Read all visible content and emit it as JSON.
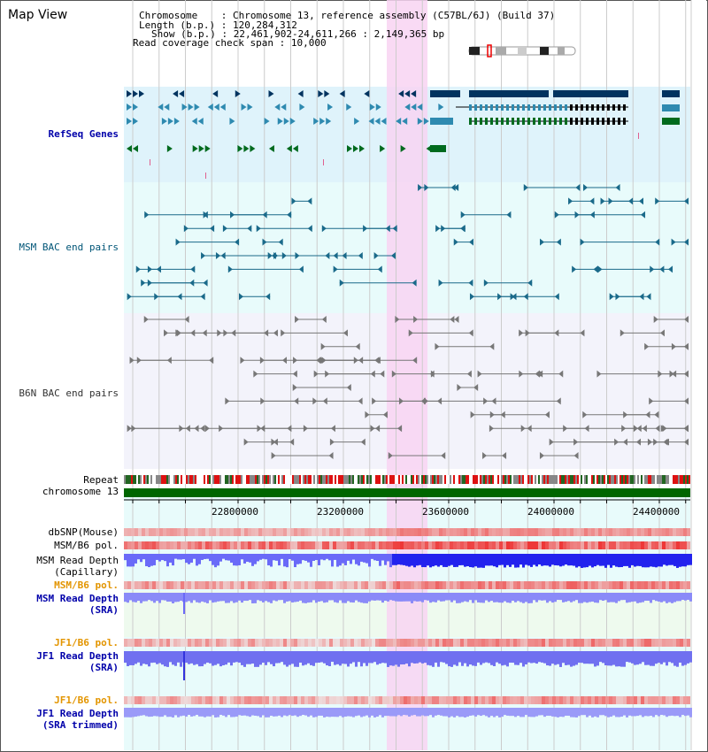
{
  "title": "Map View",
  "info": {
    "chromosome_label": "Chromosome",
    "chromosome_value": "Chromosome 13, reference assembly (C57BL/6J) (Build 37)",
    "length_label": "Length (b.p.)",
    "length_value": "120,284,312",
    "show_label": "Show (b.p.)",
    "show_value": "22,461,902-24,611,266 : 2,149,365 bp",
    "coverage_label": "Read coverage check span",
    "coverage_value": "10,000"
  },
  "tracks": {
    "refseq": "RefSeq Genes",
    "msm_bac": "MSM BAC end pairs",
    "b6n_bac": "B6N BAC end pairs",
    "repeat": "Repeat",
    "chromosome": "chromosome 13",
    "dbsnp": "dbSNP(Mouse)",
    "msm_b6_pol_1": "MSM/B6 pol.",
    "msm_read_depth_cap_1": "MSM Read Depth",
    "msm_read_depth_cap_2": "(Capillary)",
    "msm_b6_pol_2": "MSM/B6 pol.",
    "msm_read_depth_sra_1": "MSM Read Depth",
    "msm_read_depth_sra_2": "(SRA)",
    "jf1_b6_pol_1": "JF1/B6 pol.",
    "jf1_read_depth_sra_1": "JF1 Read Depth",
    "jf1_read_depth_sra_2": "(SRA)",
    "jf1_b6_pol_2": "JF1/B6 pol.",
    "jf1_read_depth_trim_1": "JF1 Read Depth",
    "jf1_read_depth_trim_2": "(SRA trimmed)"
  },
  "axis_ticks": [
    "22800000",
    "23200000",
    "23600000",
    "24000000",
    "24400000"
  ],
  "colors": {
    "refseq_bg": "#dff3fb",
    "msm_bg": "#e8fbfb",
    "b6n_bg": "#f3f3fb",
    "highlight": "#f8d4f2",
    "chromosome_bar": "#006600",
    "gene_dark": "#00335f",
    "gene_mid": "#2e8ab0",
    "gene_green": "#006a1e",
    "bac_msm": "#1a6a8a",
    "bac_b6n": "#777777",
    "depth_blue": "#3333ee",
    "depth_light": "#8a8af8",
    "pol_red": "#ee2222"
  }
}
